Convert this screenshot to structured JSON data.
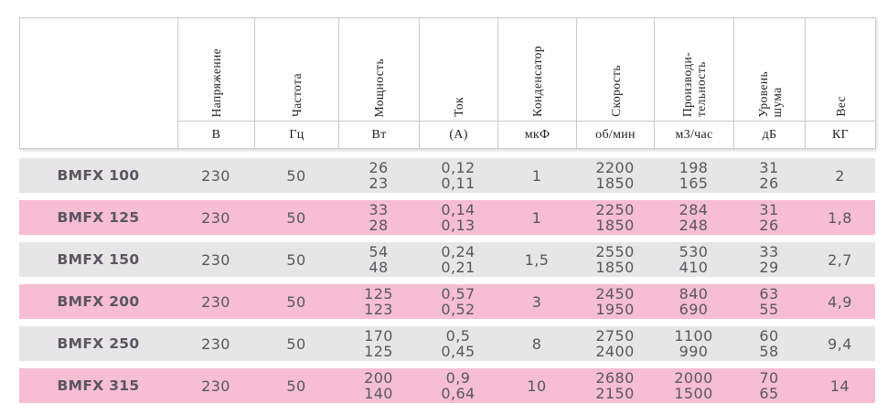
{
  "table": {
    "columns": [
      {
        "label": "",
        "unit": ""
      },
      {
        "label": "Напряжение",
        "unit": "В"
      },
      {
        "label": "Частота",
        "unit": "Гц"
      },
      {
        "label": "Мощность",
        "unit": "Вт"
      },
      {
        "label": "Ток",
        "unit": "(А)"
      },
      {
        "label": "Конденсатор",
        "unit": "мкФ"
      },
      {
        "label": "Скорость",
        "unit": "об/мин"
      },
      {
        "label": "Производи-\nтельность",
        "unit": "м3/час"
      },
      {
        "label": "Уровень\nшума",
        "unit": "дБ"
      },
      {
        "label": "Вес",
        "unit": "КГ"
      }
    ],
    "rows": [
      {
        "model": "BMFX 100",
        "values": [
          "230",
          "50",
          "26\n23",
          "0,12\n0,11",
          "1",
          "2200\n1850",
          "198\n165",
          "31\n26",
          "2"
        ]
      },
      {
        "model": "BMFX 125",
        "values": [
          "230",
          "50",
          "33\n28",
          "0,14\n0,13",
          "1",
          "2250\n1850",
          "284\n248",
          "31\n26",
          "1,8"
        ]
      },
      {
        "model": "BMFX 150",
        "values": [
          "230",
          "50",
          "54\n48",
          "0,24\n0,21",
          "1,5",
          "2550\n1850",
          "530\n410",
          "33\n29",
          "2,7"
        ]
      },
      {
        "model": "BMFX 200",
        "values": [
          "230",
          "50",
          "125\n123",
          "0,57\n0,52",
          "3",
          "2450\n1950",
          "840\n690",
          "63\n55",
          "4,9"
        ]
      },
      {
        "model": "BMFX 250",
        "values": [
          "230",
          "50",
          "170\n125",
          "0,5\n0,45",
          "8",
          "2750\n2400",
          "1100\n990",
          "60\n58",
          "9,4"
        ]
      },
      {
        "model": "BMFX 315",
        "values": [
          "230",
          "50",
          "200\n140",
          "0,9\n0,64",
          "10",
          "2680\n2150",
          "2000\n1500",
          "70\n65",
          "14"
        ]
      }
    ],
    "colors": {
      "row_gray": "#e7e6e6",
      "row_pink": "#f6bdd3",
      "header_border": "#c9c9c9",
      "data_text": "#59585d"
    }
  }
}
